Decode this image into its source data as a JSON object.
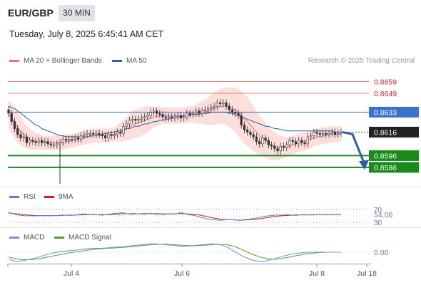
{
  "header": {
    "pair": "EUR/GBP",
    "timeframe": "30 MIN",
    "datetime": "Tuesday, July 8, 2025 6:45:41 AM CET",
    "credit": "Research © 2025 Trading Central"
  },
  "legend": {
    "ma20": "MA 20 + Bollinger Bands",
    "ma50": "MA 50",
    "rsi": "RSI",
    "rsi_ma": "9MA",
    "macd": "MACD",
    "macd_signal": "MACD Signal"
  },
  "colors": {
    "ma20": "#f07070",
    "ma50": "#2c5fa8",
    "bollinger_fill": "#fbd9d6",
    "resistance": "#e87878",
    "pivot": "#3b73cc",
    "support": "#1a8a1a",
    "current": "#222222",
    "candle": "#333333",
    "rsi": "#5b7fd6",
    "rsi_ma": "#cc2222",
    "macd": "#6f93d8",
    "macd_signal": "#5aa02c"
  },
  "chart_data": [
    {
      "type": "candlestick",
      "title": "EUR/GBP",
      "x_ticks": [
        "Jul 4",
        "Jul 6",
        "Jul 8",
        "Jul 18"
      ],
      "ylim": [
        0.8572,
        0.8669
      ],
      "levels": [
        {
          "label": "0.8659",
          "value": 0.8659,
          "kind": "resistance"
        },
        {
          "label": "0.8649",
          "value": 0.8649,
          "kind": "resistance"
        },
        {
          "label": "0.8633",
          "value": 0.8633,
          "kind": "pivot"
        },
        {
          "label": "0.8616",
          "value": 0.8616,
          "kind": "current"
        },
        {
          "label": "0.8596",
          "value": 0.8596,
          "kind": "support"
        },
        {
          "label": "0.8586",
          "value": 0.8586,
          "kind": "support"
        }
      ],
      "close_series": [
        0.8632,
        0.8625,
        0.8619,
        0.8614,
        0.8611,
        0.8612,
        0.8607,
        0.8609,
        0.8608,
        0.8607,
        0.8609,
        0.8607,
        0.8608,
        0.8606,
        0.8605,
        0.8605,
        0.8606,
        0.8607,
        0.861,
        0.8609,
        0.861,
        0.861,
        0.8611,
        0.861,
        0.8613,
        0.8614,
        0.8615,
        0.8615,
        0.8614,
        0.8615,
        0.8614,
        0.8613,
        0.8611,
        0.8614,
        0.8613,
        0.8614,
        0.8616,
        0.8615,
        0.8621,
        0.8623,
        0.8626,
        0.8627,
        0.8626,
        0.8627,
        0.8628,
        0.8629,
        0.863,
        0.8633,
        0.8634,
        0.8632,
        0.8631,
        0.8629,
        0.8628,
        0.8629,
        0.8628,
        0.8629,
        0.863,
        0.8628,
        0.8629,
        0.8632,
        0.8631,
        0.8632,
        0.8634,
        0.8632,
        0.8634,
        0.8635,
        0.8636,
        0.8637,
        0.8638,
        0.8641,
        0.864,
        0.8641,
        0.8638,
        0.8635,
        0.8633,
        0.8632,
        0.863,
        0.8622,
        0.8618,
        0.8616,
        0.8614,
        0.8612,
        0.8608,
        0.8606,
        0.8611,
        0.8609,
        0.8605,
        0.8604,
        0.8602,
        0.86,
        0.8604,
        0.8603,
        0.8605,
        0.8609,
        0.8608,
        0.8606,
        0.8609,
        0.8607,
        0.8606,
        0.8612,
        0.8613,
        0.8616,
        0.8615,
        0.8614,
        0.8615,
        0.8614,
        0.8615,
        0.8616,
        0.8614,
        0.8615,
        0.8616
      ],
      "ma20": [
        0.8631,
        0.8628,
        0.8624,
        0.862,
        0.8617,
        0.8614,
        0.8612,
        0.861,
        0.8609,
        0.8608,
        0.8608,
        0.8607,
        0.8607,
        0.8607,
        0.8607,
        0.8607,
        0.8607,
        0.8607,
        0.8607,
        0.8608,
        0.8608,
        0.8609,
        0.8609,
        0.861,
        0.8611,
        0.8611,
        0.8612,
        0.8612,
        0.8613,
        0.8613,
        0.8613,
        0.8613,
        0.8613,
        0.8613,
        0.8614,
        0.8614,
        0.8615,
        0.8616,
        0.8617,
        0.8619,
        0.862,
        0.8622,
        0.8623,
        0.8624,
        0.8625,
        0.8626,
        0.8627,
        0.8628,
        0.8629,
        0.8629,
        0.863,
        0.863,
        0.863,
        0.863,
        0.863,
        0.863,
        0.863,
        0.863,
        0.863,
        0.8631,
        0.8631,
        0.8631,
        0.8632,
        0.8632,
        0.8633,
        0.8633,
        0.8634,
        0.8635,
        0.8636,
        0.8637,
        0.8638,
        0.8638,
        0.8638,
        0.8637,
        0.8636,
        0.8635,
        0.8633,
        0.863,
        0.8627,
        0.8625,
        0.8622,
        0.8619,
        0.8616,
        0.8613,
        0.8611,
        0.8609,
        0.8607,
        0.8605,
        0.8604,
        0.8603,
        0.8603,
        0.8603,
        0.8603,
        0.8604,
        0.8605,
        0.8606,
        0.8607,
        0.8608,
        0.8608,
        0.8609,
        0.861,
        0.8611,
        0.8612,
        0.8612,
        0.8613,
        0.8613,
        0.8614,
        0.8614,
        0.8614,
        0.8614,
        0.8615
      ],
      "ma50": [
        0.8638,
        0.8637,
        0.8636,
        0.8634,
        0.8632,
        0.863,
        0.8628,
        0.8626,
        0.8624,
        0.8622,
        0.8621,
        0.8619,
        0.8618,
        0.8617,
        0.8616,
        0.8615,
        0.8614,
        0.8613,
        0.8613,
        0.8612,
        0.8612,
        0.8612,
        0.8612,
        0.8612,
        0.8612,
        0.8612,
        0.8612,
        0.8613,
        0.8613,
        0.8613,
        0.8614,
        0.8614,
        0.8615,
        0.8615,
        0.8616,
        0.8616,
        0.8617,
        0.8617,
        0.8618,
        0.8619,
        0.8619,
        0.862,
        0.8621,
        0.8621,
        0.8622,
        0.8623,
        0.8623,
        0.8624,
        0.8625,
        0.8625,
        0.8626,
        0.8626,
        0.8627,
        0.8627,
        0.8628,
        0.8628,
        0.8629,
        0.8629,
        0.863,
        0.863,
        0.863,
        0.8631,
        0.8631,
        0.8631,
        0.8632,
        0.8632,
        0.8632,
        0.8633,
        0.8633,
        0.8633,
        0.8633,
        0.8633,
        0.8633,
        0.8632,
        0.8632,
        0.8631,
        0.863,
        0.8629,
        0.8628,
        0.8627,
        0.8626,
        0.8625,
        0.8624,
        0.8623,
        0.8622,
        0.8621,
        0.8621,
        0.862,
        0.8619,
        0.8619,
        0.8618,
        0.8618,
        0.8617,
        0.8617,
        0.8617,
        0.8617,
        0.8617,
        0.8617,
        0.8617,
        0.8617,
        0.8617,
        0.8617,
        0.8617,
        0.8617,
        0.8617,
        0.8617,
        0.8617,
        0.8617,
        0.8616,
        0.8616,
        0.8616
      ],
      "bb_halfwidth": [
        0.0012,
        0.0013,
        0.0013,
        0.0013,
        0.0012,
        0.0011,
        0.001,
        0.0009,
        0.0008,
        0.0007,
        0.0007,
        0.0006,
        0.0006,
        0.0006,
        0.0006,
        0.0006,
        0.0006,
        0.0006,
        0.0006,
        0.0006,
        0.0006,
        0.0006,
        0.0006,
        0.0006,
        0.0006,
        0.0006,
        0.0006,
        0.0006,
        0.0006,
        0.0006,
        0.0006,
        0.0006,
        0.0006,
        0.0006,
        0.0006,
        0.0006,
        0.0007,
        0.0008,
        0.0009,
        0.001,
        0.0011,
        0.0012,
        0.0012,
        0.0012,
        0.0012,
        0.0012,
        0.0011,
        0.001,
        0.0009,
        0.0008,
        0.0008,
        0.0007,
        0.0007,
        0.0007,
        0.0007,
        0.0007,
        0.0007,
        0.0007,
        0.0007,
        0.0007,
        0.0007,
        0.0007,
        0.0008,
        0.0009,
        0.001,
        0.0011,
        0.0012,
        0.0013,
        0.0014,
        0.0014,
        0.0015,
        0.0015,
        0.0016,
        0.0017,
        0.0018,
        0.0019,
        0.002,
        0.0021,
        0.0021,
        0.0021,
        0.002,
        0.0019,
        0.0018,
        0.0017,
        0.0016,
        0.0015,
        0.0014,
        0.0013,
        0.0012,
        0.0011,
        0.001,
        0.0009,
        0.0008,
        0.0008,
        0.0008,
        0.0008,
        0.0008,
        0.0008,
        0.0008,
        0.0008,
        0.0008,
        0.0007,
        0.0007,
        0.0007,
        0.0007,
        0.0007,
        0.0007,
        0.0007,
        0.0007,
        0.0007,
        0.0007
      ],
      "spike_low": {
        "index": 17,
        "value": 0.8572
      },
      "forecast_arrow": {
        "from": 0.8616,
        "to": 0.859
      }
    },
    {
      "type": "line",
      "title": "RSI",
      "y_ticks": [
        "70",
        "30"
      ],
      "ylim": [
        30,
        70
      ],
      "current_label": "54.06",
      "series": [
        {
          "name": "RSI",
          "values": [
            62,
            58,
            55,
            53,
            52,
            51,
            50,
            51,
            50,
            50,
            50,
            51,
            50,
            50,
            50,
            51,
            51,
            52,
            53,
            52,
            53,
            53,
            52,
            54,
            55,
            56,
            55,
            54,
            55,
            54,
            53,
            52,
            54,
            55,
            56,
            58,
            57,
            60,
            59,
            57,
            56,
            55,
            56,
            57,
            56,
            55,
            57,
            58,
            56,
            55,
            56,
            54,
            55,
            57,
            56,
            55,
            58,
            60,
            58,
            55,
            53,
            52,
            50,
            47,
            45,
            42,
            40,
            39,
            38,
            37,
            36,
            37,
            38,
            38,
            38,
            37,
            36,
            36,
            38,
            39,
            40,
            42,
            43,
            45,
            47,
            49,
            50,
            51,
            52,
            53,
            52,
            53,
            54,
            53,
            52,
            54,
            53,
            54,
            54,
            53,
            54,
            54,
            54,
            54,
            54,
            53,
            54,
            54,
            54,
            54,
            54
          ]
        },
        {
          "name": "9MA",
          "values": [
            59,
            58,
            57,
            56,
            55,
            54,
            53,
            52,
            52,
            51,
            51,
            51,
            51,
            51,
            51,
            51,
            51,
            51,
            52,
            52,
            52,
            52,
            53,
            53,
            53,
            54,
            54,
            54,
            54,
            54,
            54,
            54,
            54,
            54,
            54,
            55,
            55,
            56,
            57,
            57,
            57,
            57,
            57,
            57,
            57,
            57,
            57,
            57,
            57,
            57,
            57,
            56,
            56,
            56,
            56,
            56,
            57,
            57,
            57,
            56,
            56,
            55,
            54,
            53,
            51,
            49,
            47,
            45,
            43,
            42,
            40,
            39,
            38,
            38,
            38,
            37,
            37,
            37,
            37,
            38,
            38,
            39,
            40,
            41,
            42,
            44,
            45,
            47,
            48,
            49,
            50,
            51,
            51,
            52,
            52,
            52,
            53,
            53,
            53,
            53,
            53,
            53,
            54,
            54,
            54,
            54,
            54,
            54,
            54,
            54,
            54
          ]
        }
      ]
    },
    {
      "type": "line",
      "title": "MACD",
      "current_label": "0.00",
      "series": [
        {
          "name": "MACD",
          "values": [
            -2.1,
            -2.6,
            -2.9,
            -3.0,
            -2.9,
            -2.8,
            -2.6,
            -2.4,
            -2.1,
            -1.9,
            -1.6,
            -1.3,
            -1.0,
            -0.7,
            -0.4,
            -0.2,
            0.0,
            0.2,
            0.3,
            0.4,
            0.5,
            0.6,
            0.7,
            0.8,
            1.0,
            1.1,
            1.2,
            1.3,
            1.3,
            1.3,
            1.3,
            1.3,
            1.4,
            1.5,
            1.6,
            1.7,
            1.7,
            1.8,
            1.9,
            2.0,
            2.1,
            2.2,
            2.3,
            2.4,
            2.5,
            2.6,
            2.7,
            2.8,
            2.8,
            2.8,
            2.7,
            2.6,
            2.5,
            2.4,
            2.3,
            2.2,
            2.1,
            2.0,
            2.0,
            2.0,
            2.1,
            2.2,
            2.3,
            2.4,
            2.5,
            2.6,
            2.7,
            2.8,
            2.8,
            2.7,
            2.5,
            2.2,
            1.8,
            1.3,
            0.7,
            0.1,
            -0.5,
            -1.1,
            -1.6,
            -2.0,
            -2.4,
            -2.7,
            -2.9,
            -3.0,
            -3.0,
            -2.9,
            -2.7,
            -2.5,
            -2.2,
            -1.9,
            -1.6,
            -1.3,
            -1.0,
            -0.8,
            -0.6,
            -0.4,
            -0.3,
            -0.2,
            -0.1,
            0.0,
            0.0,
            0.0,
            0.0,
            0.0,
            0.0,
            0.0,
            0.0,
            0.0,
            0.0,
            0.0,
            0.0
          ]
        },
        {
          "name": "MACD Signal",
          "values": [
            -1.6,
            -1.8,
            -2.0,
            -2.2,
            -2.4,
            -2.5,
            -2.5,
            -2.5,
            -2.4,
            -2.3,
            -2.2,
            -2.0,
            -1.8,
            -1.6,
            -1.4,
            -1.2,
            -1.0,
            -0.8,
            -0.6,
            -0.4,
            -0.2,
            -0.1,
            0.1,
            0.2,
            0.4,
            0.5,
            0.7,
            0.8,
            0.9,
            1.0,
            1.1,
            1.2,
            1.3,
            1.3,
            1.4,
            1.4,
            1.5,
            1.6,
            1.6,
            1.7,
            1.8,
            1.9,
            2.0,
            2.1,
            2.2,
            2.3,
            2.4,
            2.5,
            2.6,
            2.6,
            2.7,
            2.7,
            2.7,
            2.6,
            2.6,
            2.5,
            2.4,
            2.3,
            2.3,
            2.2,
            2.2,
            2.2,
            2.2,
            2.2,
            2.3,
            2.3,
            2.4,
            2.5,
            2.6,
            2.6,
            2.6,
            2.6,
            2.5,
            2.3,
            2.1,
            1.8,
            1.4,
            1.0,
            0.5,
            0.0,
            -0.4,
            -0.8,
            -1.2,
            -1.5,
            -1.8,
            -2.0,
            -2.2,
            -2.3,
            -2.3,
            -2.3,
            -2.2,
            -2.0,
            -1.8,
            -1.6,
            -1.4,
            -1.2,
            -1.0,
            -0.8,
            -0.6,
            -0.5,
            -0.4,
            -0.3,
            -0.2,
            -0.1,
            -0.1,
            0.0,
            0.0,
            0.0,
            0.0,
            0.0,
            0.0
          ]
        }
      ]
    }
  ]
}
